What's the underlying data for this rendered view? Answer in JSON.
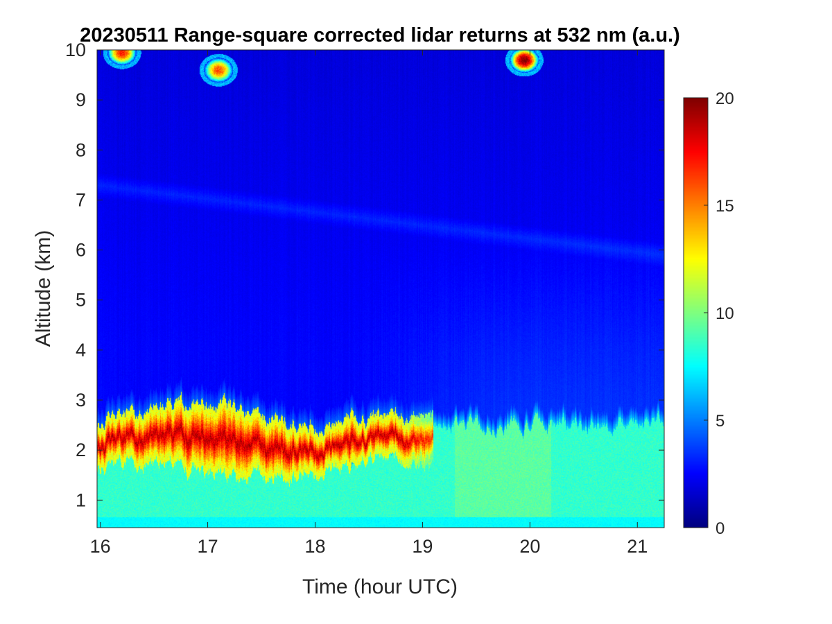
{
  "chart_data": {
    "type": "heatmap",
    "title": "20230511  Range-square corrected lidar returns at 532 nm (a.u.)",
    "xlabel": "Time (hour UTC)",
    "ylabel": "Altitude (km)",
    "xlim": [
      15.97,
      21.25
    ],
    "ylim": [
      0.45,
      10
    ],
    "xticks": [
      16,
      17,
      18,
      19,
      20,
      21
    ],
    "yticks": [
      1,
      2,
      3,
      4,
      5,
      6,
      7,
      8,
      9,
      10
    ],
    "colorbar": {
      "range": [
        0,
        20
      ],
      "ticks": [
        0,
        5,
        10,
        15,
        20
      ],
      "colormap": "jet"
    },
    "layers": {
      "surface_boundary_layer": {
        "top_km": 2.0,
        "top_km_after_19": 2.5,
        "value": 8.5
      },
      "elevated_aerosol_layer": {
        "start_hour": 15.97,
        "end_hour": 19.1,
        "center_km_start": 2.2,
        "center_km_end": 2.1,
        "peak_value": 19
      },
      "free_troposphere": {
        "value": 2.5
      },
      "faint_layer": {
        "altitude_km_start": 7.3,
        "altitude_km_end": 5.9,
        "value": 3.5
      },
      "cirrus_patches": [
        {
          "hour": 16.2,
          "altitude_km": 9.95,
          "value": 16
        },
        {
          "hour": 17.1,
          "altitude_km": 9.6,
          "value": 15
        },
        {
          "hour": 19.95,
          "altitude_km": 9.8,
          "value": 19
        }
      ]
    }
  }
}
